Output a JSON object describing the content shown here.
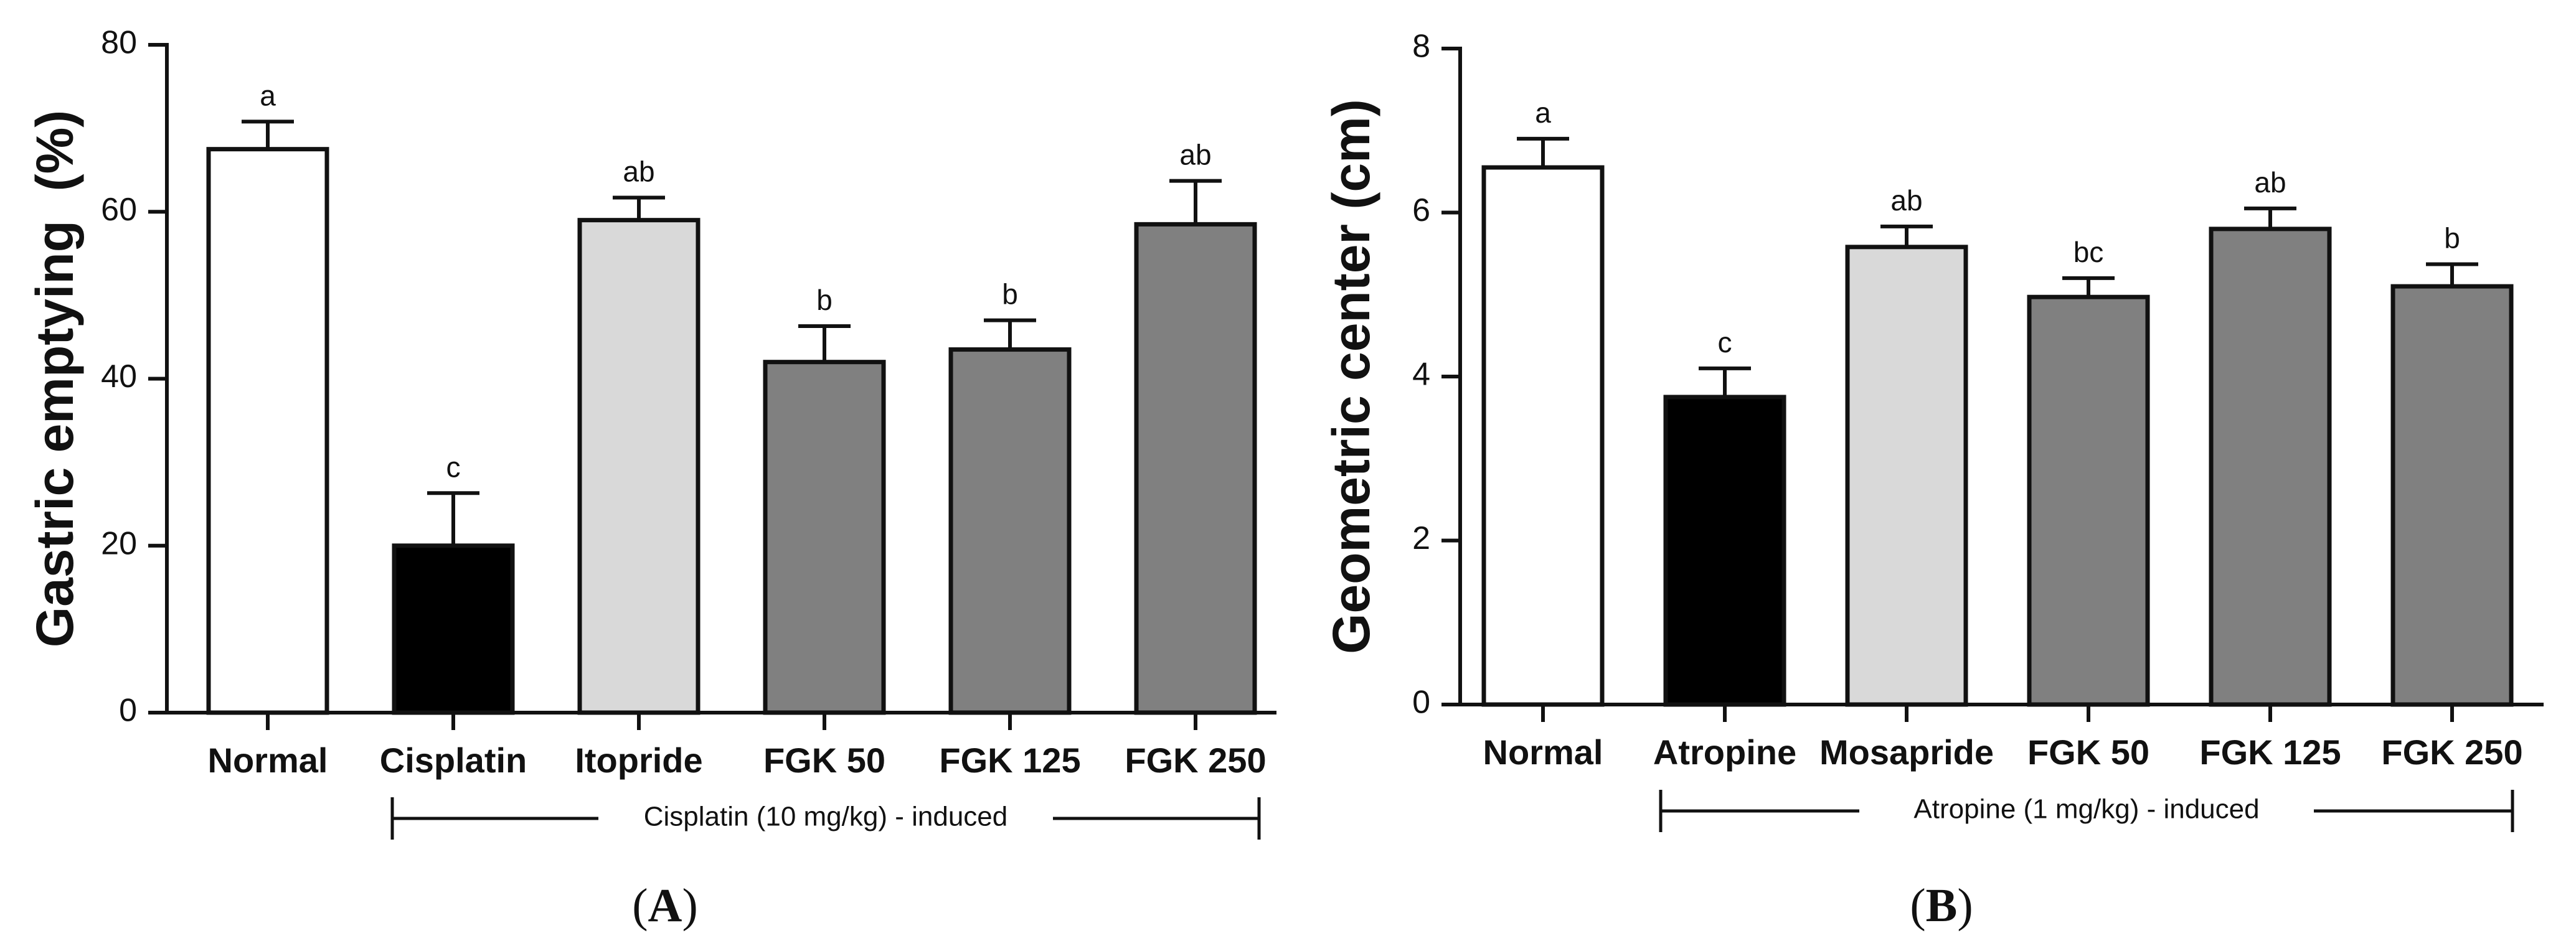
{
  "chart_data": [
    {
      "type": "bar",
      "panel": "A",
      "panel_label": {
        "open": "(",
        "letter": "A",
        "close": ")"
      },
      "title": "",
      "xlabel": "",
      "ylabel": "Gastric emptying  (%)",
      "ylim": [
        0,
        80
      ],
      "yticks": [
        0,
        20,
        40,
        60,
        80
      ],
      "categories": [
        "Normal",
        "Cisplatin",
        "Itopride",
        "FGK 50",
        "FGK 125",
        "FGK 250"
      ],
      "values": [
        67.5,
        20,
        59,
        42,
        43.5,
        58.5
      ],
      "errors": [
        3.3,
        6.3,
        2.7,
        4.3,
        3.5,
        5.2
      ],
      "significance": [
        "a",
        "c",
        "ab",
        "b",
        "b",
        "ab"
      ],
      "bar_colors": [
        "#ffffff",
        "#000000",
        "#d9d9d9",
        "#808080",
        "#808080",
        "#808080"
      ],
      "bracket": {
        "label": "Cisplatin (10 mg/kg) - induced",
        "from": 1,
        "to": 5
      }
    },
    {
      "type": "bar",
      "panel": "B",
      "panel_label": {
        "open": "(",
        "letter": "B",
        "close": ")"
      },
      "title": "",
      "xlabel": "",
      "ylabel": "Geometric center (cm)",
      "ylim": [
        0,
        8
      ],
      "yticks": [
        0,
        2,
        4,
        6,
        8
      ],
      "categories": [
        "Normal",
        "Atropine",
        "Mosapride",
        "FGK 50",
        "FGK 125",
        "FGK 250"
      ],
      "values": [
        6.55,
        3.75,
        5.58,
        4.97,
        5.8,
        5.1
      ],
      "errors": [
        0.35,
        0.35,
        0.25,
        0.23,
        0.25,
        0.27
      ],
      "significance": [
        "a",
        "c",
        "ab",
        "bc",
        "ab",
        "b"
      ],
      "bar_colors": [
        "#ffffff",
        "#000000",
        "#d9d9d9",
        "#808080",
        "#808080",
        "#808080"
      ],
      "bracket": {
        "label": "Atropine (1 mg/kg) - induced",
        "from": 1,
        "to": 5
      }
    }
  ]
}
